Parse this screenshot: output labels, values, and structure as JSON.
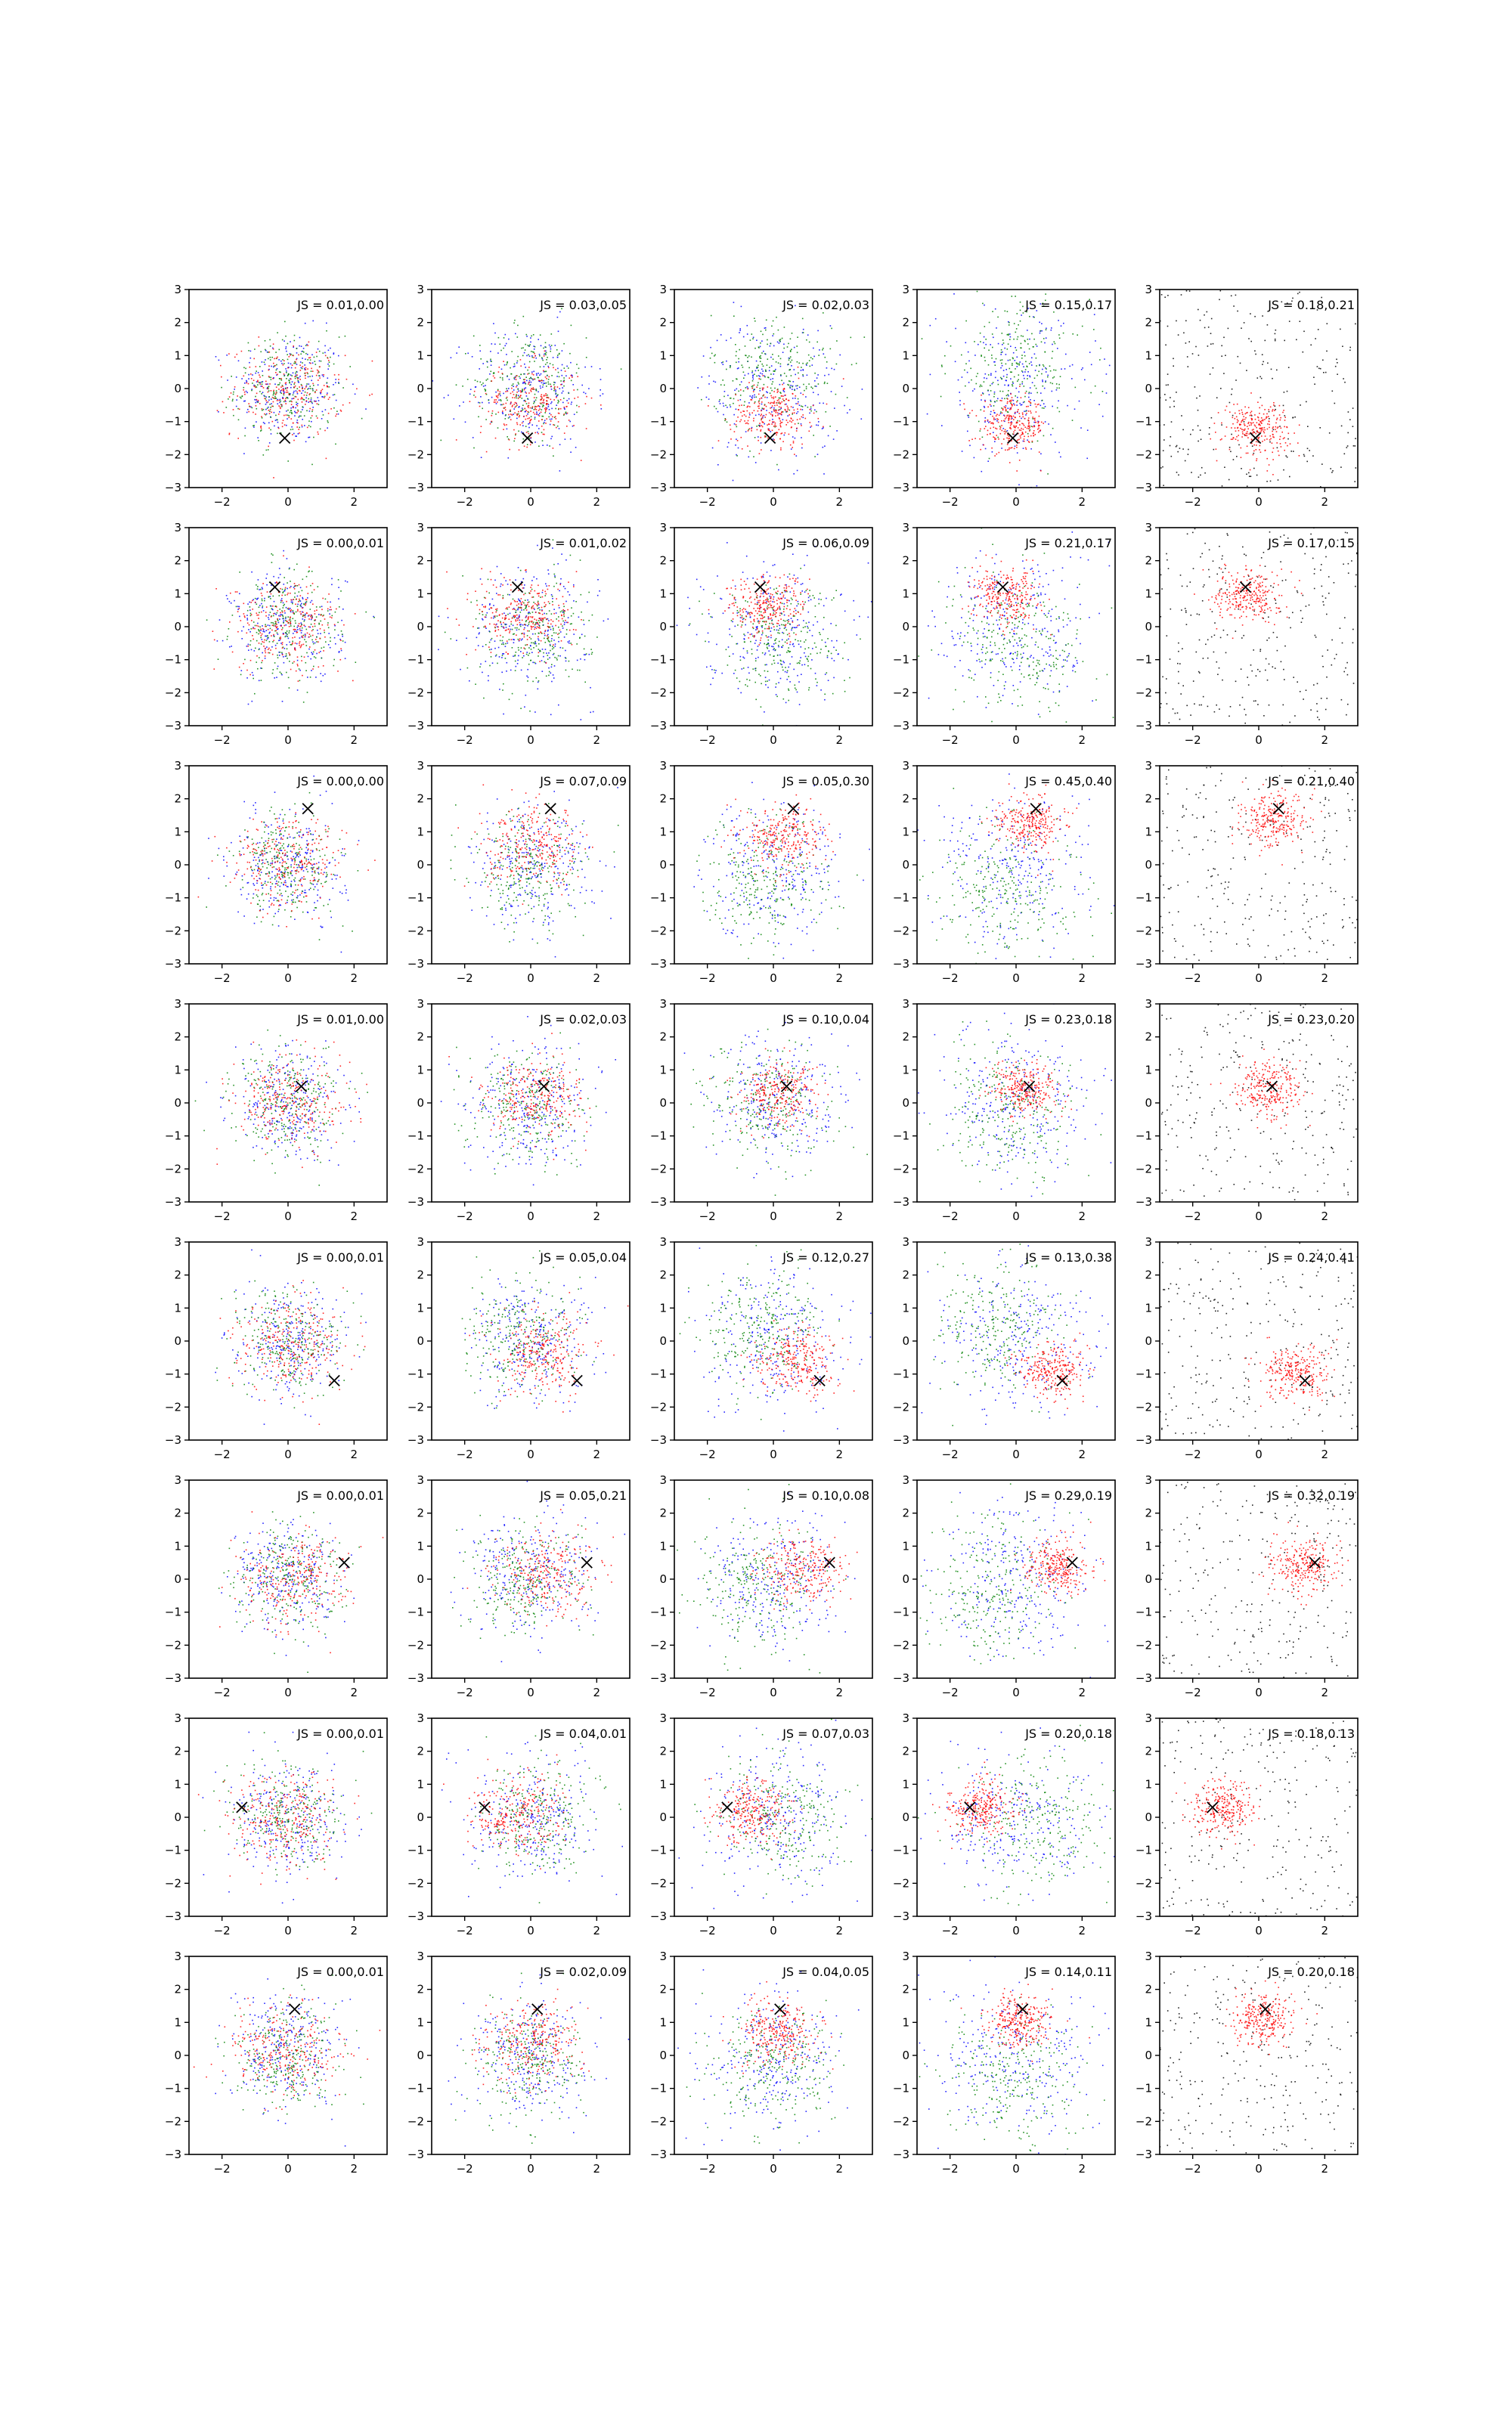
{
  "figure": {
    "rows": 8,
    "cols": 5
  },
  "chart_data": {
    "type": "scatter",
    "xlim": [
      -3,
      3
    ],
    "ylim": [
      -3,
      3
    ],
    "xticks": [
      -2,
      0,
      2
    ],
    "yticks": [
      -3,
      -2,
      -1,
      0,
      1,
      2,
      3
    ],
    "grid": false,
    "legend": "none",
    "colors": {
      "red": "#ff0000",
      "green": "#008000",
      "blue": "#0000ff",
      "black": "#000000"
    },
    "columns": [
      {
        "series": [
          "blue",
          "green",
          "red"
        ],
        "points_per_series": 260
      },
      {
        "series": [
          "blue",
          "green",
          "red"
        ],
        "points_per_series": 260
      },
      {
        "series": [
          "blue",
          "green",
          "red"
        ],
        "points_per_series": 260
      },
      {
        "series": [
          "blue",
          "green",
          "red"
        ],
        "points_per_series": 260
      },
      {
        "series": [
          "black",
          "red"
        ],
        "points_per_series": 260
      }
    ],
    "panels": [
      {
        "row": 0,
        "marker": [
          -0.1,
          -1.5
        ],
        "labels": [
          "JS = 0.01,0.00",
          "JS = 0.03,0.05",
          "JS = 0.02,0.03",
          "JS = 0.15,0.17",
          "JS = 0.18,0.21"
        ]
      },
      {
        "row": 1,
        "marker": [
          -0.4,
          1.2
        ],
        "labels": [
          "JS = 0.00,0.01",
          "JS = 0.01,0.02",
          "JS = 0.06,0.09",
          "JS = 0.21,0.17",
          "JS = 0.17,0.15"
        ]
      },
      {
        "row": 2,
        "marker": [
          0.6,
          1.7
        ],
        "labels": [
          "JS = 0.00,0.00",
          "JS = 0.07,0.09",
          "JS = 0.05,0.30",
          "JS = 0.45,0.40",
          "JS = 0.21,0.40"
        ]
      },
      {
        "row": 3,
        "marker": [
          0.4,
          0.5
        ],
        "labels": [
          "JS = 0.01,0.00",
          "JS = 0.02,0.03",
          "JS = 0.10,0.04",
          "JS = 0.23,0.18",
          "JS = 0.23,0.20"
        ]
      },
      {
        "row": 4,
        "marker": [
          1.4,
          -1.2
        ],
        "labels": [
          "JS = 0.00,0.01",
          "JS = 0.05,0.04",
          "JS = 0.12,0.27",
          "JS = 0.13,0.38",
          "JS = 0.24,0.41"
        ]
      },
      {
        "row": 5,
        "marker": [
          1.7,
          0.5
        ],
        "labels": [
          "JS = 0.00,0.01",
          "JS = 0.05,0.21",
          "JS = 0.10,0.08",
          "JS = 0.29,0.19",
          "JS = 0.32,0.19"
        ]
      },
      {
        "row": 6,
        "marker": [
          -1.4,
          0.3
        ],
        "labels": [
          "JS = 0.00,0.01",
          "JS = 0.04,0.01",
          "JS = 0.07,0.03",
          "JS = 0.20,0.18",
          "JS = 0.18,0.13"
        ]
      },
      {
        "row": 7,
        "marker": [
          0.2,
          1.4
        ],
        "labels": [
          "JS = 0.00,0.01",
          "JS = 0.02,0.09",
          "JS = 0.04,0.05",
          "JS = 0.14,0.11",
          "JS = 0.20,0.18"
        ]
      }
    ]
  }
}
